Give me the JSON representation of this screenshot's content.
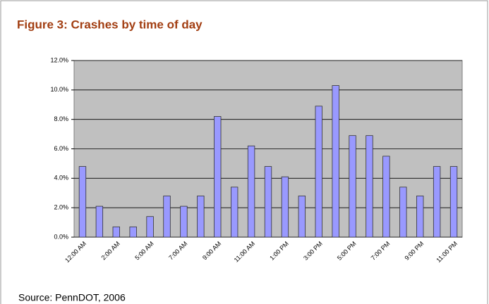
{
  "chart_data": {
    "type": "bar",
    "title": "Figure 3:  Crashes by time of day",
    "categories": [
      "12:00 AM",
      null,
      "2:00 AM",
      null,
      "5:00 AM",
      null,
      "7:00 AM",
      null,
      "9:00 AM",
      null,
      "11:00 AM",
      null,
      "1:00 PM",
      null,
      "3:00 PM",
      null,
      "5:00 PM",
      null,
      "7:00 PM",
      null,
      "9:00 PM",
      null,
      "11:00 PM"
    ],
    "values": [
      4.8,
      2.1,
      0.7,
      0.7,
      1.4,
      2.8,
      2.1,
      2.8,
      8.2,
      3.4,
      6.2,
      4.8,
      4.1,
      2.8,
      8.9,
      10.3,
      6.9,
      6.9,
      5.5,
      3.4,
      2.8,
      4.8,
      4.8
    ],
    "color": "#9999ff",
    "ylim": [
      0,
      12
    ],
    "yticks": [
      {
        "value": 0,
        "label": "0.0%"
      },
      {
        "value": 2,
        "label": "2.0%"
      },
      {
        "value": 4,
        "label": "4.0%"
      },
      {
        "value": 6,
        "label": "6.0%"
      },
      {
        "value": 8,
        "label": "8.0%"
      },
      {
        "value": 10,
        "label": "10.0%"
      },
      {
        "value": 12,
        "label": "12.0%"
      }
    ],
    "grid": true,
    "source": "Source: PennDOT, 2006"
  }
}
